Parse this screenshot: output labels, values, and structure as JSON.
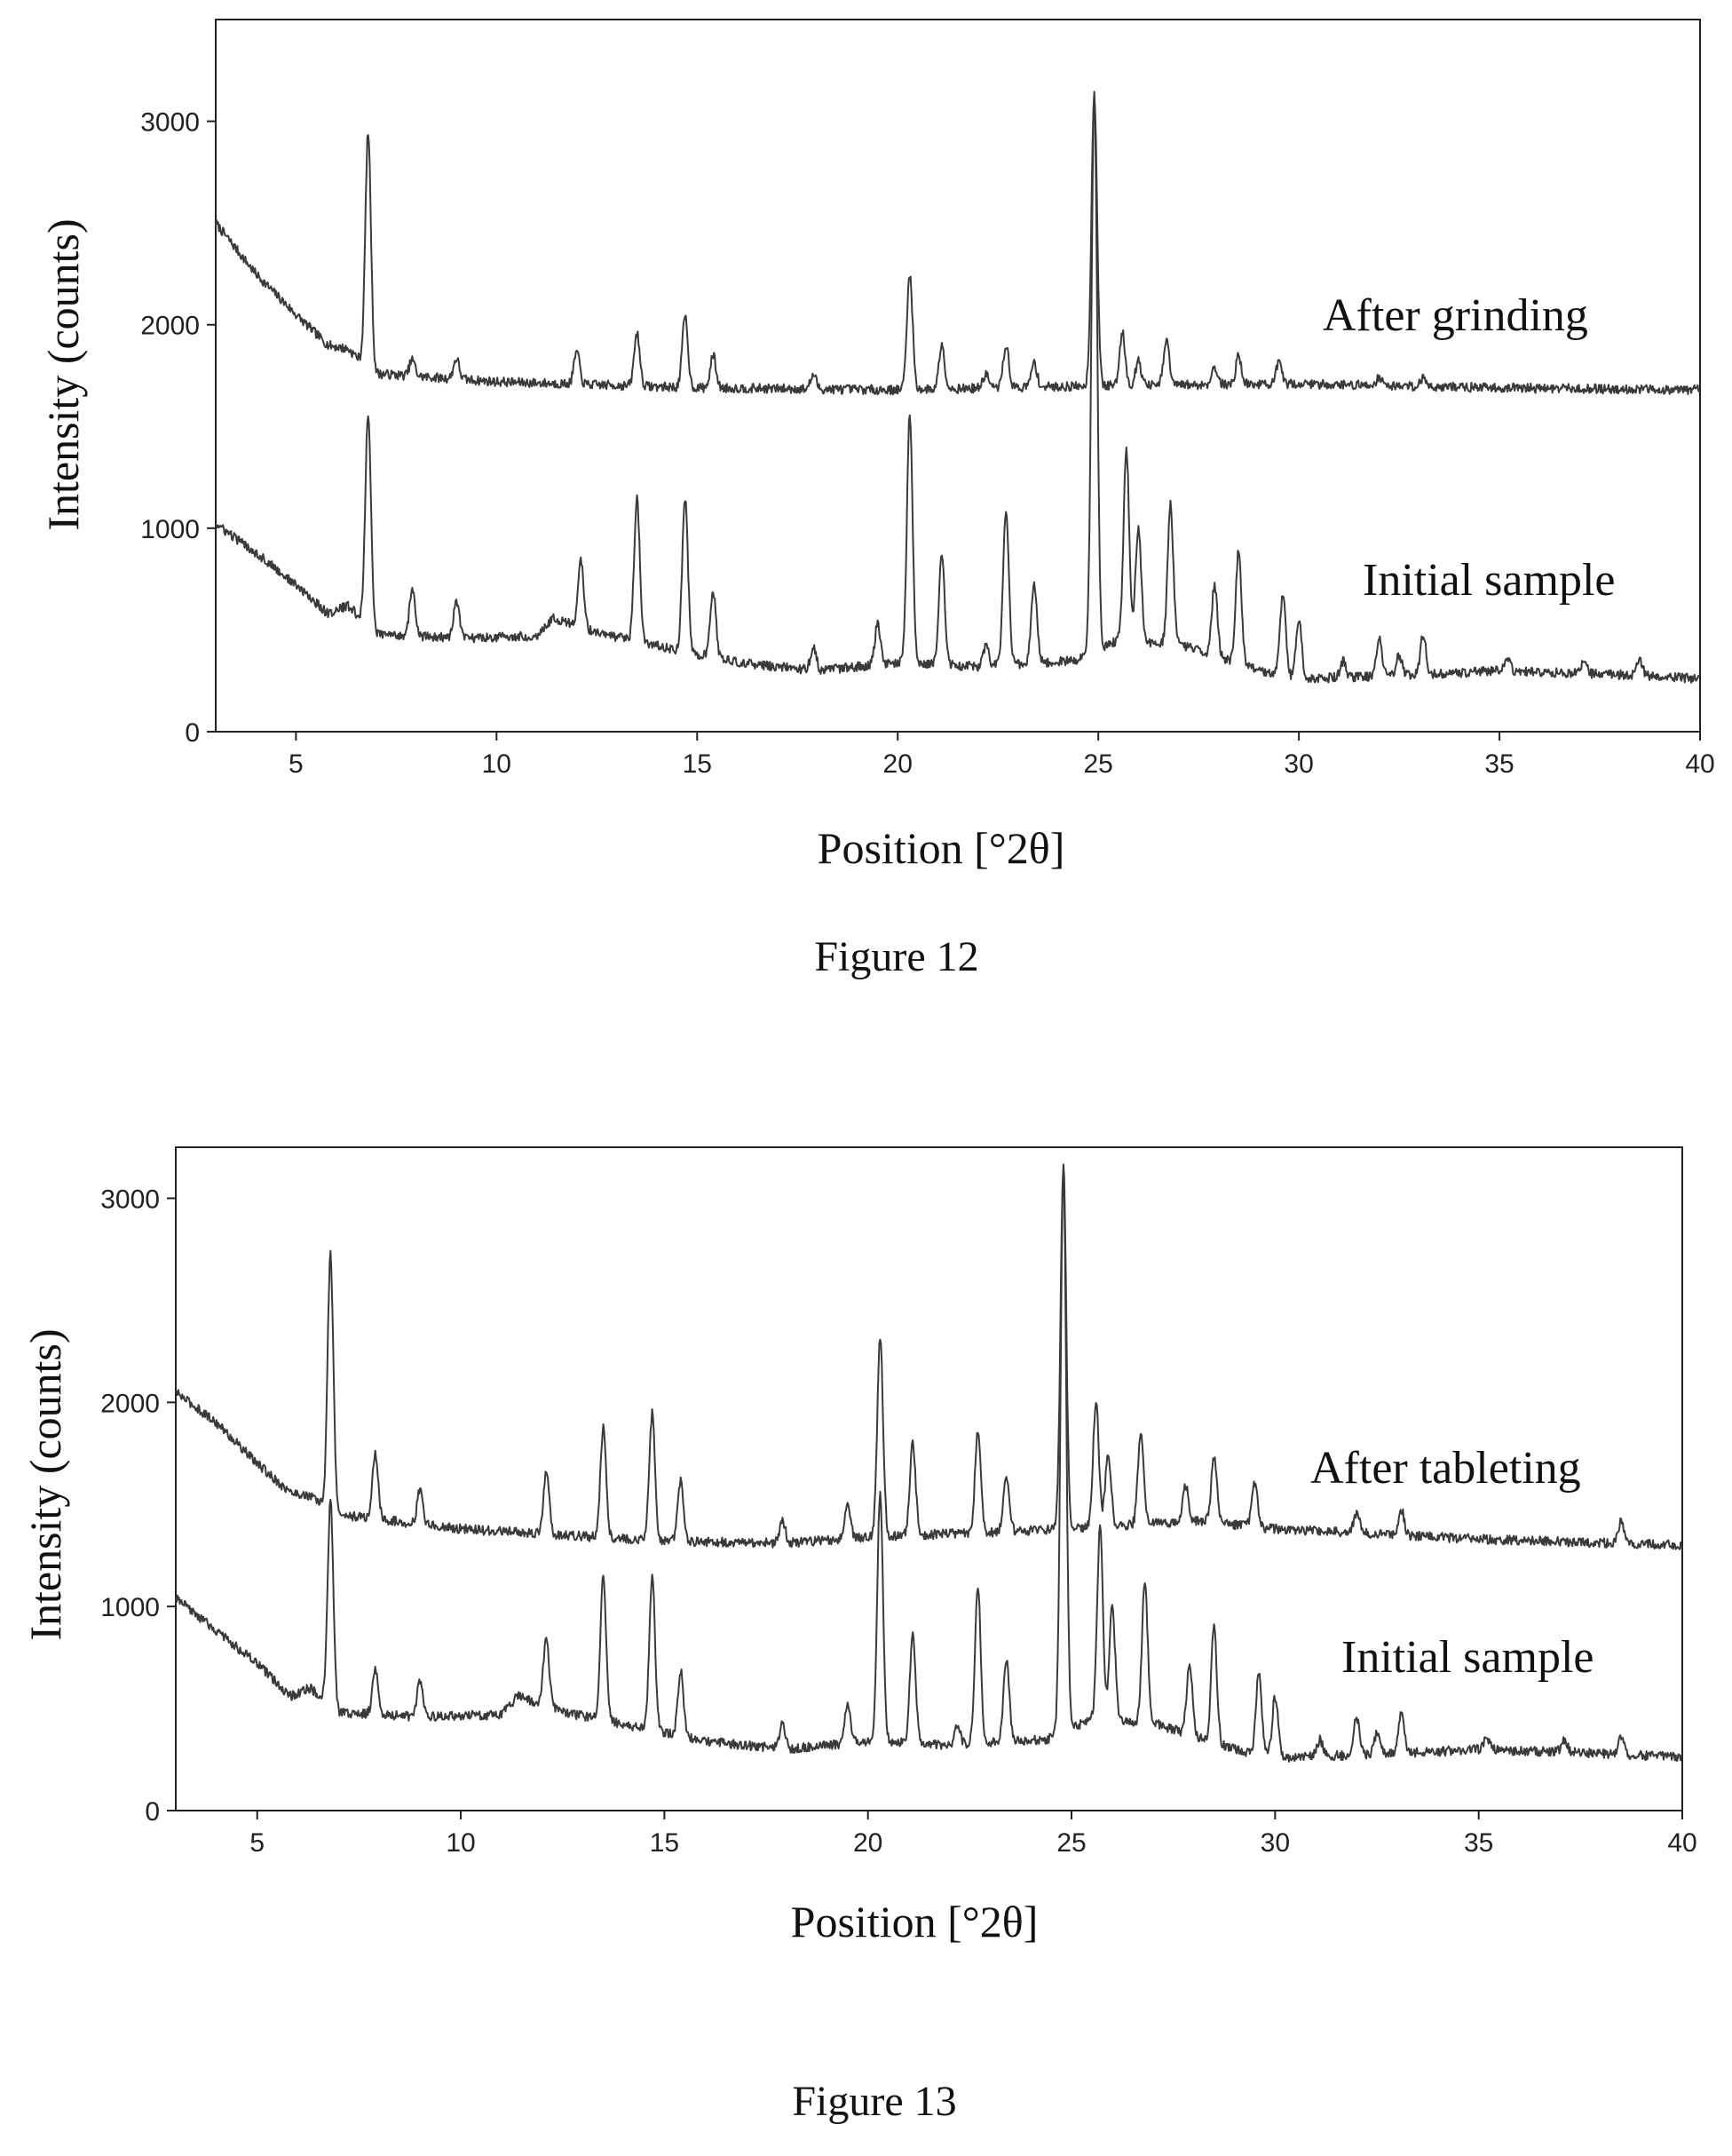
{
  "chart_data": [
    {
      "type": "line",
      "caption": "Figure 12",
      "xlabel": "Position [°2θ]",
      "ylabel": "Intensity (counts)",
      "xlim": [
        3,
        40
      ],
      "ylim": [
        0,
        3500
      ],
      "xticks": [
        5,
        10,
        15,
        20,
        25,
        30,
        35,
        40
      ],
      "yticks": [
        0,
        1000,
        2000,
        3000
      ],
      "grid": false,
      "series": [
        {
          "name": "After grinding",
          "baseline": [
            [
              3,
              2500
            ],
            [
              4,
              2250
            ],
            [
              5,
              2050
            ],
            [
              5.8,
              1900
            ],
            [
              6.3,
              1880
            ],
            [
              7,
              1760
            ],
            [
              10,
              1720
            ],
            [
              15,
              1690
            ],
            [
              20,
              1680
            ],
            [
              25,
              1700
            ],
            [
              30,
              1710
            ],
            [
              35,
              1690
            ],
            [
              40,
              1680
            ]
          ],
          "peaks": [
            [
              6.8,
              1150
            ],
            [
              7.9,
              80
            ],
            [
              9.0,
              100
            ],
            [
              12.0,
              160
            ],
            [
              13.5,
              260
            ],
            [
              14.7,
              350
            ],
            [
              15.4,
              160
            ],
            [
              17.9,
              70
            ],
            [
              20.3,
              570
            ],
            [
              21.1,
              220
            ],
            [
              22.2,
              70
            ],
            [
              22.7,
              210
            ],
            [
              23.4,
              120
            ],
            [
              24.9,
              1430
            ],
            [
              25.6,
              260
            ],
            [
              26.0,
              120
            ],
            [
              26.7,
              220
            ],
            [
              27.9,
              90
            ],
            [
              28.5,
              140
            ],
            [
              29.5,
              100
            ],
            [
              32.0,
              40
            ],
            [
              33.1,
              40
            ]
          ]
        },
        {
          "name": "Initial sample",
          "baseline": [
            [
              3,
              1020
            ],
            [
              4,
              880
            ],
            [
              5,
              720
            ],
            [
              5.8,
              580
            ],
            [
              6.3,
              620
            ],
            [
              7,
              480
            ],
            [
              9,
              460
            ],
            [
              11,
              470
            ],
            [
              11.4,
              560
            ],
            [
              12.6,
              480
            ],
            [
              16,
              340
            ],
            [
              18,
              300
            ],
            [
              20,
              340
            ],
            [
              22,
              320
            ],
            [
              24.4,
              350
            ],
            [
              25.5,
              450
            ],
            [
              27,
              430
            ],
            [
              29,
              300
            ],
            [
              30,
              260
            ],
            [
              33,
              280
            ],
            [
              35,
              300
            ],
            [
              38,
              280
            ],
            [
              40,
              260
            ]
          ],
          "peaks": [
            [
              6.8,
              1050
            ],
            [
              7.9,
              230
            ],
            [
              9.0,
              180
            ],
            [
              12.1,
              330
            ],
            [
              13.5,
              700
            ],
            [
              14.7,
              750
            ],
            [
              15.4,
              320
            ],
            [
              17.9,
              120
            ],
            [
              19.5,
              200
            ],
            [
              20.3,
              1220
            ],
            [
              21.1,
              540
            ],
            [
              22.2,
              100
            ],
            [
              22.7,
              760
            ],
            [
              23.4,
              400
            ],
            [
              24.9,
              2750
            ],
            [
              25.7,
              940
            ],
            [
              26.0,
              560
            ],
            [
              26.8,
              680
            ],
            [
              27.9,
              350
            ],
            [
              28.5,
              560
            ],
            [
              29.6,
              400
            ],
            [
              30.0,
              300
            ],
            [
              31.1,
              80
            ],
            [
              32.0,
              180
            ],
            [
              32.5,
              100
            ],
            [
              33.1,
              200
            ],
            [
              35.2,
              60
            ],
            [
              37.1,
              60
            ],
            [
              38.5,
              80
            ]
          ]
        }
      ]
    },
    {
      "type": "line",
      "caption": "Figure 13",
      "xlabel": "Position [°2θ]",
      "ylabel": "Intensity (counts)",
      "xlim": [
        3,
        40
      ],
      "ylim": [
        0,
        3250
      ],
      "xticks": [
        5,
        10,
        15,
        20,
        25,
        30,
        35,
        40
      ],
      "yticks": [
        0,
        1000,
        2000,
        3000
      ],
      "grid": false,
      "series": [
        {
          "name": "After tableting",
          "baseline": [
            [
              3,
              2050
            ],
            [
              4,
              1900
            ],
            [
              5,
              1700
            ],
            [
              5.8,
              1560
            ],
            [
              6.3,
              1540
            ],
            [
              7,
              1450
            ],
            [
              10,
              1380
            ],
            [
              15,
              1320
            ],
            [
              18,
              1310
            ],
            [
              20,
              1340
            ],
            [
              25,
              1380
            ],
            [
              28,
              1420
            ],
            [
              30,
              1380
            ],
            [
              35,
              1330
            ],
            [
              40,
              1300
            ]
          ],
          "peaks": [
            [
              6.8,
              1250
            ],
            [
              7.9,
              320
            ],
            [
              9.0,
              170
            ],
            [
              12.1,
              300
            ],
            [
              13.5,
              540
            ],
            [
              14.7,
              620
            ],
            [
              15.4,
              300
            ],
            [
              17.9,
              110
            ],
            [
              19.5,
              170
            ],
            [
              20.3,
              980
            ],
            [
              21.1,
              450
            ],
            [
              22.7,
              500
            ],
            [
              23.4,
              260
            ],
            [
              24.8,
              1780
            ],
            [
              25.6,
              620
            ],
            [
              25.9,
              360
            ],
            [
              26.7,
              440
            ],
            [
              27.8,
              180
            ],
            [
              28.5,
              320
            ],
            [
              29.5,
              220
            ],
            [
              32.0,
              100
            ],
            [
              33.1,
              130
            ],
            [
              38.5,
              110
            ]
          ]
        },
        {
          "name": "Initial sample",
          "baseline": [
            [
              3,
              1040
            ],
            [
              4,
              880
            ],
            [
              5,
              720
            ],
            [
              5.8,
              560
            ],
            [
              6.3,
              600
            ],
            [
              7,
              480
            ],
            [
              9,
              460
            ],
            [
              11,
              470
            ],
            [
              11.4,
              560
            ],
            [
              12.6,
              480
            ],
            [
              16,
              340
            ],
            [
              18,
              300
            ],
            [
              20,
              340
            ],
            [
              22,
              320
            ],
            [
              24.4,
              350
            ],
            [
              25.5,
              450
            ],
            [
              27,
              430
            ],
            [
              29,
              300
            ],
            [
              30,
              260
            ],
            [
              33,
              280
            ],
            [
              35,
              300
            ],
            [
              38,
              280
            ],
            [
              40,
              260
            ]
          ],
          "peaks": [
            [
              6.8,
              1000
            ],
            [
              7.9,
              230
            ],
            [
              9.0,
              180
            ],
            [
              12.1,
              330
            ],
            [
              13.5,
              700
            ],
            [
              14.7,
              750
            ],
            [
              15.4,
              320
            ],
            [
              17.9,
              120
            ],
            [
              19.5,
              200
            ],
            [
              20.3,
              1220
            ],
            [
              21.1,
              540
            ],
            [
              22.2,
              100
            ],
            [
              22.7,
              760
            ],
            [
              23.4,
              400
            ],
            [
              24.8,
              2750
            ],
            [
              25.7,
              940
            ],
            [
              26.0,
              560
            ],
            [
              26.8,
              680
            ],
            [
              27.9,
              350
            ],
            [
              28.5,
              560
            ],
            [
              29.6,
              400
            ],
            [
              30.0,
              300
            ],
            [
              31.1,
              80
            ],
            [
              32.0,
              180
            ],
            [
              32.5,
              100
            ],
            [
              33.1,
              200
            ],
            [
              35.2,
              60
            ],
            [
              37.1,
              60
            ],
            [
              38.5,
              80
            ]
          ]
        }
      ]
    }
  ]
}
